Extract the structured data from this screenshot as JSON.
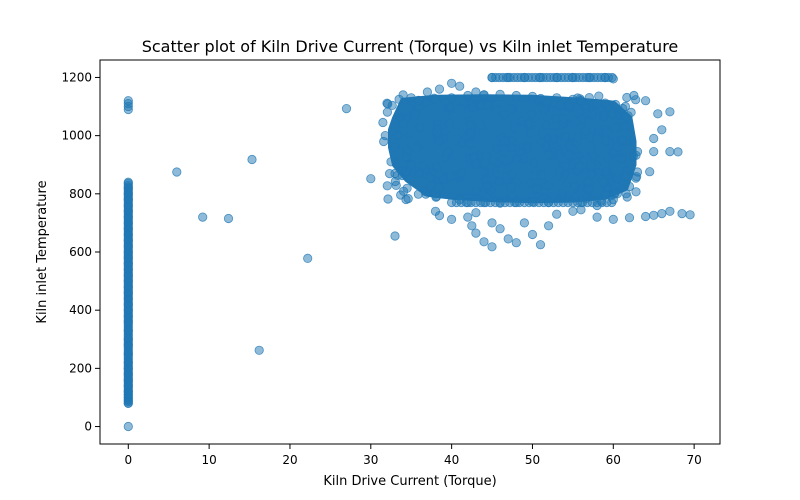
{
  "chart_data": {
    "type": "scatter",
    "title": "Scatter plot of Kiln Drive Current (Torque) vs Kiln inlet Temperature",
    "xlabel": "Kiln Drive Current (Torque)",
    "ylabel": "Kiln inlet Temperature",
    "xlim": [
      -3.5,
      73.2
    ],
    "ylim": [
      -60,
      1260
    ],
    "xticks": [
      0,
      10,
      20,
      30,
      40,
      50,
      60,
      70
    ],
    "yticks": [
      0,
      200,
      400,
      600,
      800,
      1000,
      1200
    ],
    "grid": false,
    "legend": "none",
    "marker_color": "#1f77b4",
    "marker_alpha": 0.5,
    "zero_current_readings": {
      "x": 0,
      "temperatures": [
        0,
        80,
        90,
        100,
        110,
        120,
        140,
        160,
        180,
        200,
        220,
        250,
        280,
        300,
        330,
        360,
        380,
        400,
        420,
        440,
        460,
        480,
        500,
        520,
        540,
        560,
        580,
        600,
        620,
        640,
        660,
        680,
        700,
        720,
        740,
        760,
        780,
        800,
        820,
        840,
        1090,
        1100,
        1110,
        1120
      ]
    },
    "points": [
      [
        6,
        875
      ],
      [
        9.2,
        720
      ],
      [
        12.4,
        715
      ],
      [
        15.3,
        918
      ],
      [
        16.2,
        262
      ],
      [
        22.2,
        578
      ],
      [
        27,
        1093
      ],
      [
        30,
        852
      ],
      [
        33,
        655
      ],
      [
        38,
        740
      ],
      [
        38.5,
        725
      ],
      [
        40,
        712
      ],
      [
        42.5,
        690
      ],
      [
        43,
        665
      ],
      [
        44,
        635
      ],
      [
        45,
        618
      ],
      [
        47,
        645
      ],
      [
        48,
        632
      ],
      [
        50,
        660
      ],
      [
        51,
        625
      ],
      [
        52,
        690
      ],
      [
        55,
        740
      ],
      [
        58,
        720
      ],
      [
        60,
        712
      ],
      [
        62,
        718
      ],
      [
        64,
        722
      ],
      [
        65,
        726
      ],
      [
        66,
        732
      ],
      [
        67,
        740
      ],
      [
        68.5,
        732
      ],
      [
        69.5,
        728
      ],
      [
        64,
        1120
      ],
      [
        65.5,
        1075
      ],
      [
        67,
        1082
      ],
      [
        66,
        1020
      ],
      [
        65,
        990
      ],
      [
        63,
        945
      ],
      [
        65,
        945
      ],
      [
        67,
        945
      ],
      [
        68,
        944
      ],
      [
        62.5,
        930
      ],
      [
        61,
        920
      ],
      [
        63,
        875
      ],
      [
        64.5,
        876
      ],
      [
        61.5,
        860
      ],
      [
        31.5,
        1045
      ],
      [
        31.8,
        1000
      ],
      [
        31.6,
        980
      ],
      [
        33,
        960
      ],
      [
        32.5,
        910
      ],
      [
        33,
        870
      ],
      [
        34,
        1140
      ],
      [
        36,
        1100
      ],
      [
        37,
        1150
      ],
      [
        38.5,
        1160
      ],
      [
        40,
        1180
      ],
      [
        41,
        1170
      ],
      [
        43,
        1150
      ],
      [
        44,
        1140
      ],
      [
        45,
        1200
      ],
      [
        47,
        1200
      ],
      [
        49,
        1200
      ],
      [
        51,
        1200
      ],
      [
        53,
        1200
      ],
      [
        55,
        1200
      ],
      [
        57,
        1200
      ],
      [
        59,
        1200
      ],
      [
        60,
        1195
      ],
      [
        38,
        800
      ],
      [
        37.5,
        830
      ],
      [
        39,
        850
      ],
      [
        36,
        870
      ],
      [
        35,
        900
      ],
      [
        34.5,
        950
      ],
      [
        41,
        780
      ],
      [
        42,
        770
      ],
      [
        44,
        770
      ],
      [
        46,
        768
      ],
      [
        48,
        770
      ],
      [
        50,
        772
      ],
      [
        52,
        770
      ],
      [
        56,
        770
      ],
      [
        58.5,
        775
      ],
      [
        60,
        780
      ],
      [
        42,
        720
      ],
      [
        43,
        735
      ],
      [
        45,
        700
      ],
      [
        46,
        680
      ],
      [
        49,
        700
      ],
      [
        53,
        730
      ],
      [
        56,
        745
      ],
      [
        58,
        760
      ],
      [
        60.5,
        800
      ],
      [
        62,
        825
      ],
      [
        62.2,
        1080
      ],
      [
        61.5,
        1100
      ],
      [
        58,
        1110
      ],
      [
        59,
        1112
      ],
      [
        56,
        1120
      ],
      [
        55,
        1125
      ],
      [
        53,
        1130
      ],
      [
        50,
        1135
      ],
      [
        48,
        1138
      ],
      [
        46,
        1142
      ],
      [
        44,
        1140
      ],
      [
        42,
        1138
      ],
      [
        40,
        1130
      ],
      [
        38,
        1125
      ],
      [
        36,
        1120
      ],
      [
        35,
        1130
      ],
      [
        33.5,
        1125
      ]
    ],
    "dense_region": {
      "x_range": [
        32,
        63
      ],
      "y_range": [
        780,
        1140
      ]
    }
  }
}
